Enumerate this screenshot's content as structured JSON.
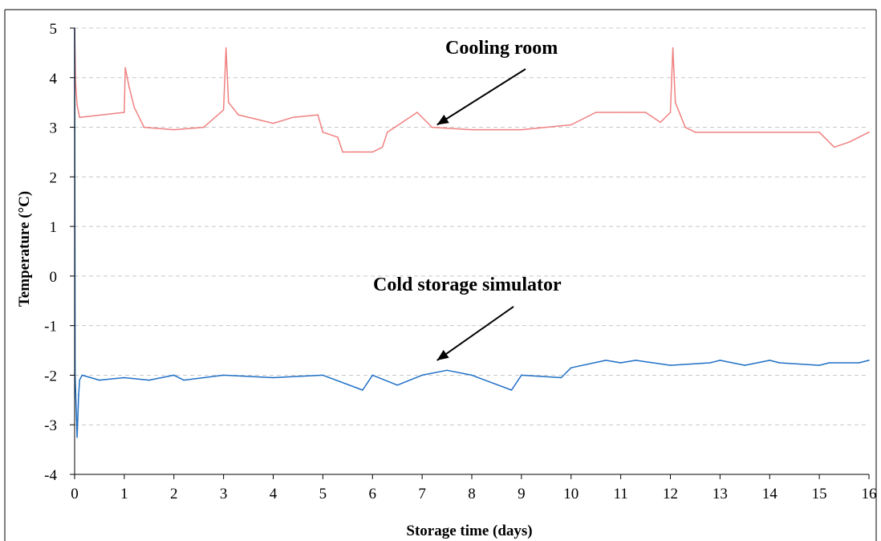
{
  "chart_data": {
    "type": "line",
    "title": "",
    "xlabel": "Storage time (days)",
    "ylabel": "Temperature (°C)",
    "xlim": [
      0,
      16
    ],
    "ylim": [
      -4,
      5
    ],
    "x_ticks": [
      "0",
      "1",
      "2",
      "3",
      "4",
      "5",
      "6",
      "7",
      "8",
      "9",
      "10",
      "11",
      "12",
      "13",
      "14",
      "15",
      "16"
    ],
    "y_ticks": [
      "5",
      "4",
      "3",
      "2",
      "1",
      "0",
      "-1",
      "-2",
      "-3",
      "-4"
    ],
    "grid": "horizontal dashed",
    "legend": "none",
    "series": [
      {
        "name": "Cooling room",
        "color": "#f08080",
        "x": [
          0,
          0.02,
          0.05,
          0.1,
          1.0,
          1.02,
          1.1,
          1.2,
          1.4,
          2.0,
          2.6,
          3.0,
          3.05,
          3.1,
          3.3,
          4.0,
          4.4,
          4.9,
          5.0,
          5.3,
          5.4,
          5.6,
          6.0,
          6.2,
          6.3,
          6.6,
          6.9,
          7.2,
          8.0,
          9.0,
          10.0,
          10.5,
          11.0,
          11.5,
          11.8,
          12.0,
          12.05,
          12.1,
          12.3,
          12.5,
          13.0,
          14.0,
          15.0,
          15.3,
          15.6,
          16.0
        ],
        "y": [
          5.0,
          3.9,
          3.45,
          3.2,
          3.3,
          4.2,
          3.8,
          3.4,
          3.0,
          2.95,
          3.0,
          3.35,
          4.6,
          3.5,
          3.25,
          3.08,
          3.2,
          3.25,
          2.9,
          2.8,
          2.5,
          2.5,
          2.5,
          2.6,
          2.9,
          3.1,
          3.3,
          3.0,
          2.95,
          2.95,
          3.05,
          3.3,
          3.3,
          3.3,
          3.1,
          3.3,
          4.6,
          3.5,
          3.0,
          2.9,
          2.9,
          2.9,
          2.9,
          2.6,
          2.7,
          2.9
        ]
      },
      {
        "name": "Cold storage simulator",
        "color": "#1f6fc5",
        "x": [
          0,
          0.01,
          0.05,
          0.08,
          0.1,
          0.15,
          0.5,
          1.0,
          1.5,
          2.0,
          2.2,
          3.0,
          4.0,
          5.0,
          5.8,
          6.0,
          6.5,
          7.0,
          7.5,
          8.0,
          8.8,
          9.0,
          9.8,
          10.0,
          10.7,
          11.0,
          11.3,
          12.0,
          12.8,
          13.0,
          13.5,
          14.0,
          14.2,
          15.0,
          15.2,
          15.8,
          16.0
        ],
        "y": [
          5.0,
          -2.0,
          -3.25,
          -2.4,
          -2.1,
          -2.0,
          -2.1,
          -2.05,
          -2.1,
          -2.0,
          -2.1,
          -2.0,
          -2.05,
          -2.0,
          -2.3,
          -2.0,
          -2.2,
          -2.0,
          -1.9,
          -2.0,
          -2.3,
          -2.0,
          -2.05,
          -1.85,
          -1.7,
          -1.75,
          -1.7,
          -1.8,
          -1.75,
          -1.7,
          -1.8,
          -1.7,
          -1.75,
          -1.8,
          -1.75,
          -1.75,
          -1.7
        ]
      }
    ],
    "annotations": [
      {
        "text": "Cooling room",
        "arrow_to": [
          7.3,
          3.05
        ]
      },
      {
        "text": "Cold storage simulator",
        "arrow_to": [
          7.3,
          -1.7
        ]
      }
    ]
  }
}
